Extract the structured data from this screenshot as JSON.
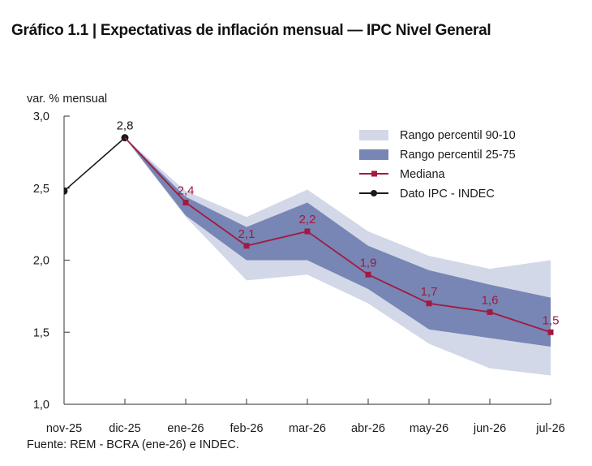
{
  "chart_data": {
    "type": "line",
    "title": "Gráfico 1.1 | Expectativas de inflación mensual — IPC Nivel General",
    "ylabel": "var. % mensual",
    "xlabel": "",
    "ylim": [
      1.0,
      3.0
    ],
    "yticks": [
      1.0,
      1.5,
      2.0,
      2.5,
      3.0
    ],
    "ytick_labels": [
      "1,0",
      "1,5",
      "2,0",
      "2,5",
      "3,0"
    ],
    "categories": [
      "nov-25",
      "dic-25",
      "ene-26",
      "feb-26",
      "mar-26",
      "abr-26",
      "may-26",
      "jun-26",
      "jul-26"
    ],
    "grid": false,
    "legend_position": "top-right",
    "legend": [
      {
        "key": "p90_10",
        "label": "Rango percentil 90-10",
        "kind": "band",
        "color": "#D3D8E8"
      },
      {
        "key": "p25_75",
        "label": "Rango percentil 25-75",
        "kind": "band",
        "color": "#7786B4"
      },
      {
        "key": "median",
        "label": "Mediana",
        "kind": "line-square",
        "color": "#A3193F"
      },
      {
        "key": "ipc",
        "label": "Dato IPC - INDEC",
        "kind": "line-dot",
        "color": "#1a1a1a"
      }
    ],
    "series": [
      {
        "name": "Dato IPC - INDEC",
        "key": "ipc",
        "x": [
          "nov-25",
          "dic-25"
        ],
        "values": [
          2.48,
          2.85
        ],
        "labels": [
          null,
          "2,8"
        ]
      },
      {
        "name": "Mediana",
        "key": "median",
        "x": [
          "dic-25",
          "ene-26",
          "feb-26",
          "mar-26",
          "abr-26",
          "may-26",
          "jun-26",
          "jul-26"
        ],
        "values": [
          2.85,
          2.4,
          2.1,
          2.2,
          1.9,
          1.7,
          1.64,
          1.5
        ],
        "labels": [
          null,
          "2,4",
          "2,1",
          "2,2",
          "1,9",
          "1,7",
          "1,6",
          "1,5"
        ]
      }
    ],
    "bands": [
      {
        "name": "Rango percentil 90-10",
        "key": "p90_10",
        "x": [
          "dic-25",
          "ene-26",
          "feb-26",
          "mar-26",
          "abr-26",
          "may-26",
          "jun-26",
          "jul-26"
        ],
        "upper": [
          2.85,
          2.48,
          2.3,
          2.49,
          2.2,
          2.03,
          1.94,
          2.0
        ],
        "lower": [
          2.85,
          2.3,
          1.86,
          1.9,
          1.7,
          1.42,
          1.25,
          1.2
        ]
      },
      {
        "name": "Rango percentil 25-75",
        "key": "p25_75",
        "x": [
          "dic-25",
          "ene-26",
          "feb-26",
          "mar-26",
          "abr-26",
          "may-26",
          "jun-26",
          "jul-26"
        ],
        "upper": [
          2.85,
          2.44,
          2.23,
          2.4,
          2.1,
          1.93,
          1.83,
          1.74
        ],
        "lower": [
          2.85,
          2.31,
          2.0,
          2.0,
          1.8,
          1.52,
          1.46,
          1.4
        ]
      }
    ]
  },
  "source": "Fuente: REM - BCRA (ene-26) e INDEC."
}
